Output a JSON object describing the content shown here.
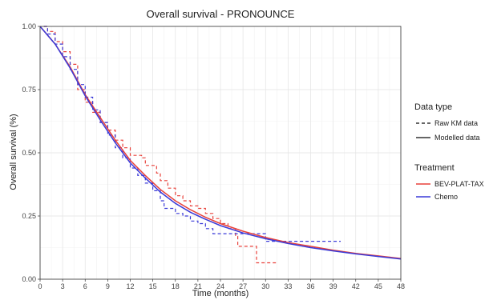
{
  "chart_data": {
    "type": "line",
    "title": "Overall survival - PRONOUNCE",
    "xlabel": "Time (months)",
    "ylabel": "Overall survival (%)",
    "xlim": [
      0,
      48
    ],
    "ylim": [
      0,
      1
    ],
    "x_ticks": [
      0,
      3,
      6,
      9,
      12,
      15,
      18,
      21,
      24,
      27,
      30,
      33,
      36,
      39,
      42,
      45,
      48
    ],
    "x_tick_labels": [
      "0",
      "3",
      "6",
      "9",
      "12",
      "15",
      "18",
      "21",
      "24",
      "27",
      "30",
      "33",
      "36",
      "39",
      "42",
      "45",
      "48"
    ],
    "y_ticks": [
      0,
      0.25,
      0.5,
      0.75,
      1
    ],
    "y_tick_labels": [
      "0.00",
      "0.25",
      "0.50",
      "0.75",
      "1.00"
    ],
    "grid": true,
    "legend_position": "right",
    "legend": {
      "data_type_title": "Data type",
      "data_type_items": [
        {
          "label": "Raw KM data",
          "style": "dashed"
        },
        {
          "label": "Modelled data",
          "style": "solid"
        }
      ],
      "treatment_title": "Treatment",
      "treatment_items": [
        {
          "label": "BEV-PLAT-TAX",
          "color": "#e8413a"
        },
        {
          "label": "Chemo",
          "color": "#3a3ad8"
        }
      ]
    },
    "series": [
      {
        "name": "BEV-PLAT-TAX",
        "type": "Raw KM data",
        "style": "dashed",
        "color": "#e8413a",
        "step": true,
        "points": [
          [
            0.5,
            1.0
          ],
          [
            1,
            0.98
          ],
          [
            2,
            0.94
          ],
          [
            3,
            0.9
          ],
          [
            4,
            0.85
          ],
          [
            5,
            0.75
          ],
          [
            6,
            0.7
          ],
          [
            7,
            0.66
          ],
          [
            8,
            0.62
          ],
          [
            9,
            0.59
          ],
          [
            10,
            0.55
          ],
          [
            11,
            0.52
          ],
          [
            12,
            0.49
          ],
          [
            13.5,
            0.48
          ],
          [
            14,
            0.45
          ],
          [
            15.5,
            0.42
          ],
          [
            16,
            0.39
          ],
          [
            17,
            0.36
          ],
          [
            18,
            0.33
          ],
          [
            19,
            0.31
          ],
          [
            20,
            0.29
          ],
          [
            21,
            0.28
          ],
          [
            22,
            0.26
          ],
          [
            23,
            0.24
          ],
          [
            24,
            0.22
          ],
          [
            25,
            0.2
          ],
          [
            26,
            0.17
          ],
          [
            26.3,
            0.13
          ],
          [
            28.5,
            0.13
          ],
          [
            28.8,
            0.065
          ],
          [
            31.5,
            0.065
          ]
        ]
      },
      {
        "name": "Chemo",
        "type": "Raw KM data",
        "style": "dashed",
        "color": "#3a3ad8",
        "step": true,
        "points": [
          [
            0.5,
            1.0
          ],
          [
            1,
            0.97
          ],
          [
            2,
            0.93
          ],
          [
            3,
            0.88
          ],
          [
            4,
            0.83
          ],
          [
            5,
            0.77
          ],
          [
            6,
            0.72
          ],
          [
            7,
            0.67
          ],
          [
            8,
            0.62
          ],
          [
            9,
            0.57
          ],
          [
            10,
            0.52
          ],
          [
            11,
            0.48
          ],
          [
            12,
            0.44
          ],
          [
            13,
            0.41
          ],
          [
            14,
            0.38
          ],
          [
            15,
            0.35
          ],
          [
            16,
            0.31
          ],
          [
            16.5,
            0.28
          ],
          [
            17,
            0.28
          ],
          [
            18,
            0.26
          ],
          [
            19,
            0.25
          ],
          [
            20,
            0.23
          ],
          [
            21,
            0.22
          ],
          [
            22,
            0.2
          ],
          [
            23,
            0.18
          ],
          [
            23.5,
            0.18
          ],
          [
            29.5,
            0.18
          ],
          [
            30,
            0.15
          ],
          [
            40,
            0.15
          ]
        ]
      },
      {
        "name": "BEV-PLAT-TAX",
        "type": "Modelled data",
        "style": "solid",
        "color": "#e8413a",
        "step": false,
        "points": [
          [
            0,
            1.0
          ],
          [
            2,
            0.93
          ],
          [
            4,
            0.84
          ],
          [
            6,
            0.73
          ],
          [
            8,
            0.64
          ],
          [
            10,
            0.55
          ],
          [
            12,
            0.47
          ],
          [
            14,
            0.41
          ],
          [
            16,
            0.355
          ],
          [
            18,
            0.31
          ],
          [
            20,
            0.275
          ],
          [
            22,
            0.245
          ],
          [
            24,
            0.22
          ],
          [
            27,
            0.19
          ],
          [
            30,
            0.165
          ],
          [
            33,
            0.145
          ],
          [
            36,
            0.13
          ],
          [
            39,
            0.115
          ],
          [
            42,
            0.102
          ],
          [
            45,
            0.092
          ],
          [
            48,
            0.082
          ]
        ]
      },
      {
        "name": "Chemo",
        "type": "Modelled data",
        "style": "solid",
        "color": "#3a3ad8",
        "step": false,
        "points": [
          [
            0,
            1.0
          ],
          [
            2,
            0.93
          ],
          [
            4,
            0.835
          ],
          [
            6,
            0.725
          ],
          [
            8,
            0.63
          ],
          [
            10,
            0.54
          ],
          [
            12,
            0.46
          ],
          [
            14,
            0.4
          ],
          [
            16,
            0.345
          ],
          [
            18,
            0.3
          ],
          [
            20,
            0.265
          ],
          [
            22,
            0.237
          ],
          [
            24,
            0.212
          ],
          [
            27,
            0.183
          ],
          [
            30,
            0.16
          ],
          [
            33,
            0.141
          ],
          [
            36,
            0.125
          ],
          [
            39,
            0.112
          ],
          [
            42,
            0.1
          ],
          [
            45,
            0.09
          ],
          [
            48,
            0.08
          ]
        ]
      }
    ]
  }
}
